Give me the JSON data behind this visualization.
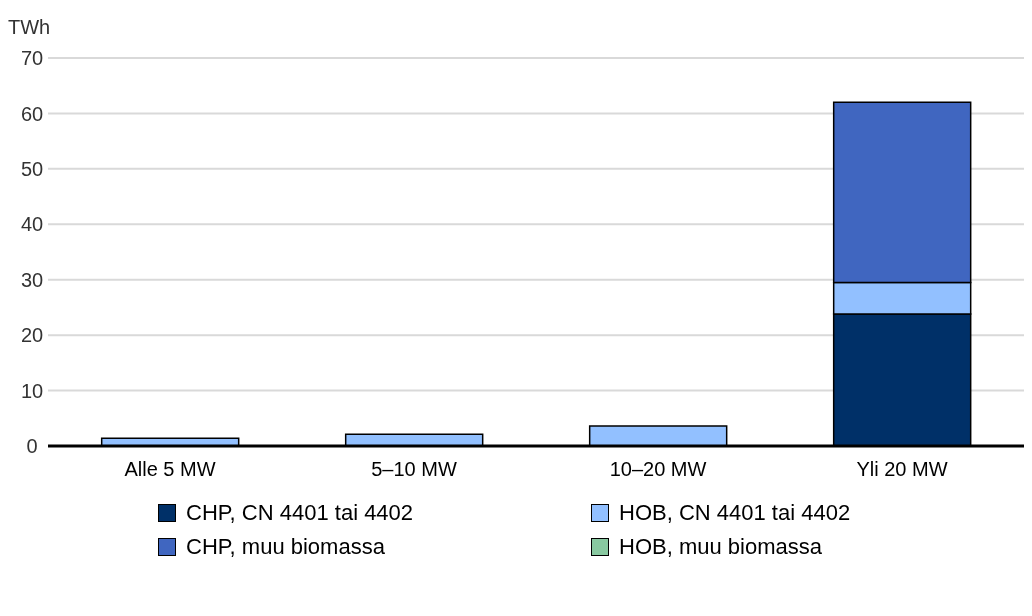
{
  "chart_data": {
    "type": "bar",
    "ylabel": "TWh",
    "categories": [
      "Alle 5 MW",
      "5–10 MW",
      "10–20 MW",
      "Yli 20 MW"
    ],
    "stacked": true,
    "series": [
      {
        "name": "CHP, CN 4401 tai 4402",
        "color": "#003068",
        "values": [
          0,
          0,
          0,
          23.8
        ]
      },
      {
        "name": "HOB, CN 4401 tai 4402",
        "color": "#92c0ff",
        "values": [
          1.4,
          2.1,
          3.6,
          5.7
        ]
      },
      {
        "name": "CHP, muu biomassa",
        "color": "#4066c0",
        "values": [
          0,
          0,
          0,
          32.5
        ]
      },
      {
        "name": "HOB, muu biomassa",
        "color": "#88c8a0",
        "values": [
          0,
          0,
          0,
          0
        ]
      }
    ],
    "ylim": [
      0,
      70
    ],
    "yticks": [
      0,
      10,
      20,
      30,
      40,
      50,
      60,
      70
    ],
    "grid": "y",
    "legend": "bottom"
  }
}
